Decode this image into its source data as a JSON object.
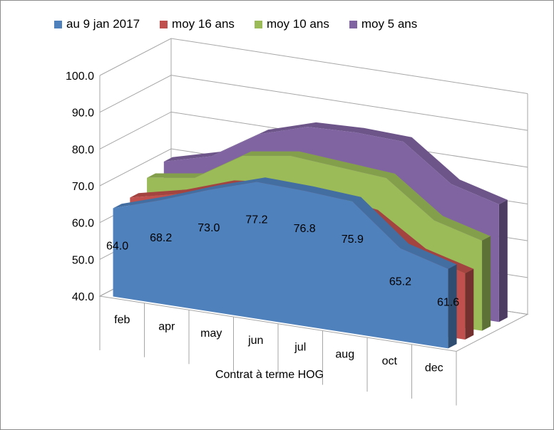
{
  "chart_data": {
    "type": "area",
    "variant": "3d",
    "xlabel": "Contrat à terme  HOG",
    "categories": [
      "feb",
      "apr",
      "may",
      "jun",
      "jul",
      "aug",
      "oct",
      "dec"
    ],
    "ylim": [
      40,
      100
    ],
    "yticks": [
      "40.0",
      "50.0",
      "60.0",
      "70.0",
      "80.0",
      "90.0",
      "100.0"
    ],
    "legend_position": "top",
    "series": [
      {
        "name": "au 9 jan 2017",
        "color": "#4f81bd",
        "values": [
          64.0,
          68.2,
          73.0,
          77.2,
          76.8,
          75.9,
          65.2,
          61.6
        ],
        "data_labels": [
          "64.0",
          "68.2",
          "73.0",
          "77.2",
          "76.8",
          "75.9",
          "65.2",
          "61.6"
        ]
      },
      {
        "name": "moy 16 ans",
        "color": "#c0504d",
        "values": [
          64.5,
          67.5,
          72.0,
          73.5,
          72.0,
          70.0,
          61.5,
          58.0
        ]
      },
      {
        "name": "moy 10 ans",
        "color": "#9bbb59",
        "values": [
          67.5,
          69.5,
          77.5,
          79.5,
          78.5,
          77.5,
          68.0,
          64.5
        ]
      },
      {
        "name": "moy 5 ans",
        "color": "#8064a2",
        "values": [
          69.5,
          73.0,
          81.0,
          85.0,
          85.5,
          85.0,
          75.5,
          72.0
        ]
      }
    ]
  }
}
